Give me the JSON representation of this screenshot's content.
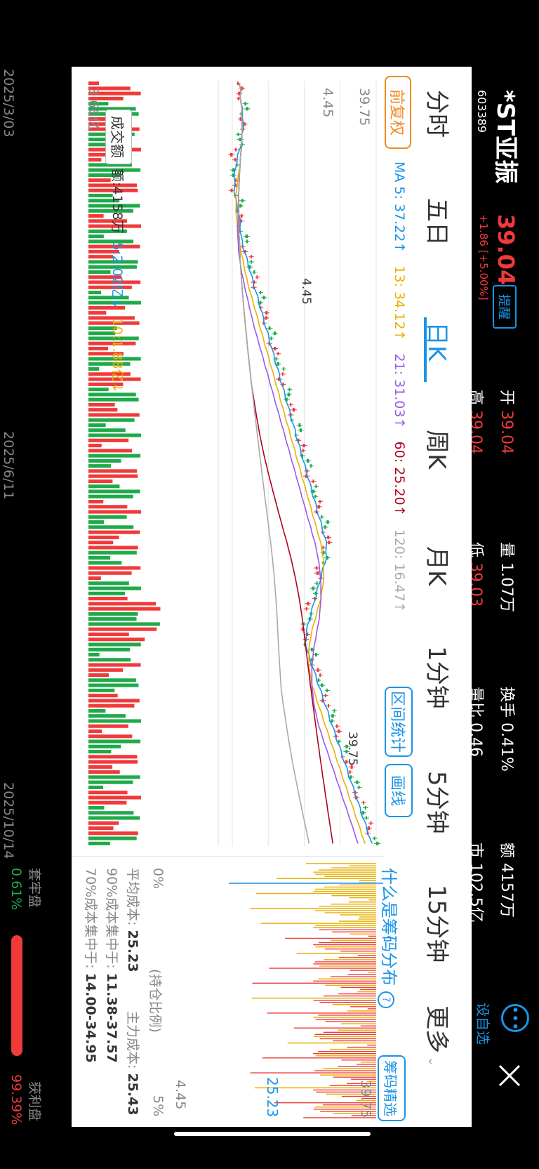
{
  "header": {
    "name": "*ST亚振",
    "code": "603389",
    "price": "39.04",
    "alert": "提醒",
    "change": "+1.86 [+5.00%]",
    "stats": [
      {
        "label": "开",
        "value": "39.04"
      },
      {
        "label": "高",
        "value": "39.04"
      },
      {
        "label": "量",
        "value": "1.07万"
      },
      {
        "label": "低",
        "value": "39.03"
      },
      {
        "label": "换手",
        "value": "0.41%"
      },
      {
        "label": "量比",
        "value": "0.46"
      },
      {
        "label": "额",
        "value": "4157万"
      },
      {
        "label": "市",
        "value": "102.5亿"
      }
    ],
    "more_icon": "more-dots-icon",
    "add_watch": "设自选",
    "close_icon": "close-icon",
    "chip_badge": "筹"
  },
  "tabs": [
    "分时",
    "五日",
    "日K",
    "周K",
    "月K",
    "1分钟",
    "5分钟",
    "15分钟",
    "更多"
  ],
  "active_tab": "日K",
  "toolbar": {
    "adjust": "前复权",
    "ma_labels": [
      {
        "text": "MA 5: 37.22↑",
        "color": "#1a94e6"
      },
      {
        "text": "13: 34.12↑",
        "color": "#e8b000"
      },
      {
        "text": "21: 31.03↑",
        "color": "#9b59e8"
      },
      {
        "text": "60: 25.20↑",
        "color": "#b00020"
      },
      {
        "text": "120: 16.47↑",
        "color": "#aaaaaa"
      }
    ],
    "range_stat": "区间统计",
    "draw_line": "画线"
  },
  "kline": {
    "price_high": "39.75",
    "price_low": "4.45",
    "high_mark": "39.75",
    "low_mark": "4.45",
    "dates": [
      "2025/3/03",
      "2025/6/11",
      "2025/10/14"
    ]
  },
  "volume": {
    "button": "成交额",
    "amount": "额:4158万",
    "ma5": "5:2.02亿↓",
    "ma10": "10:1.88亿↓",
    "max": "3.66亿"
  },
  "chips": {
    "title": "什么是筹码分布",
    "help_icon": "question-icon",
    "select_btn": "筹码精选",
    "price_high": "39.75",
    "price_mid": "25.23",
    "price_low": "4.45",
    "pct_left": "0%",
    "pct_mid": "(持仓比例)",
    "pct_right": "5%",
    "avg_cost_label": "平均成本:",
    "avg_cost": "25.23",
    "main_cost_label": "主力成本:",
    "main_cost": "25.43",
    "c90_label": "90%成本集中于:",
    "c90": "11.38-37.57",
    "c70_label": "70%成本集中于:",
    "c70": "14.00-34.95",
    "trapped_label": "套牢盘",
    "trapped": "0.61%",
    "profit_label": "获利盘",
    "profit": "99.39%"
  },
  "colors": {
    "up": "#f03a3a",
    "down": "#1faa4a",
    "accent": "#1a94e6",
    "orange": "#f08a24"
  }
}
